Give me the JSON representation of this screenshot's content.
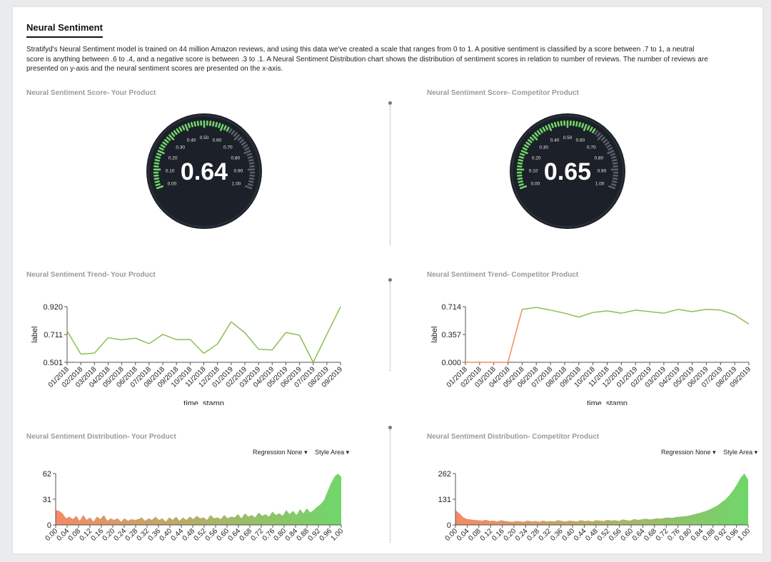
{
  "header": {
    "title": "Neural Sentiment",
    "description": "Stratifyd's Neural Sentiment model is trained on 44 million Amazon reviews, and using this data we've created a scale that ranges from 0 to 1. A positive sentiment is classified by a score between .7 to 1, a neutral score is anything between .6 to .4, and a negative score is between .3 to .1. A Neural Sentiment Distribution chart shows the distribution of sentiment scores in relation to number of reviews. The number of reviews are presented on y-axis and the neural sentiment scores are presented on the x-axis."
  },
  "sections": {
    "score_yours": "Neural Sentiment Score- Your Product",
    "score_comp": "Neural Sentiment Score-  Competitor Product",
    "trend_yours": "Neural Sentiment Trend- Your Product",
    "trend_comp": "Neural Sentiment Trend-  Competitor Product",
    "dist_yours": "Neural Sentiment Distribution- Your Product",
    "dist_comp": "Neural Sentiment Distribution- Competitor Product"
  },
  "controls": {
    "regression": "Regression None",
    "style": "Style Area",
    "caret": "▾"
  },
  "colors": {
    "positive": "#6fd66a",
    "negative": "#f48a66",
    "gauge_bg": "#1c2028",
    "line": "#8bbf4f"
  },
  "gauges": [
    {
      "value": "0.64",
      "ticks": [
        "0.00",
        "0.10",
        "0.20",
        "0.30",
        "0.40",
        "0.50",
        "0.60",
        "0.70",
        "0.80",
        "0.90",
        "1.00"
      ],
      "fill_fraction": 0.64
    },
    {
      "value": "0.65",
      "ticks": [
        "0.00",
        "0.10",
        "0.20",
        "0.30",
        "0.40",
        "0.50",
        "0.60",
        "0.70",
        "0.80",
        "0.90",
        "1.00"
      ],
      "fill_fraction": 0.65
    }
  ],
  "chart_data": [
    {
      "type": "line",
      "xlabel": "time_stamp",
      "ylabel": "label",
      "categories": [
        "01/2018",
        "02/2018",
        "03/2018",
        "04/2018",
        "05/2018",
        "06/2018",
        "07/2018",
        "08/2018",
        "09/2018",
        "10/2018",
        "11/2018",
        "12/2018",
        "01/2019",
        "02/2019",
        "03/2019",
        "04/2019",
        "05/2019",
        "06/2019",
        "07/2019",
        "08/2019",
        "09/2019"
      ],
      "values": [
        0.738,
        0.563,
        0.57,
        0.686,
        0.67,
        0.683,
        0.641,
        0.711,
        0.672,
        0.673,
        0.568,
        0.639,
        0.806,
        0.724,
        0.6,
        0.594,
        0.726,
        0.705,
        0.501,
        0.711,
        0.92
      ],
      "yticks": [
        "0.920",
        "0.711",
        "0.501"
      ],
      "ylim": [
        0.501,
        0.92
      ]
    },
    {
      "type": "line",
      "xlabel": "time_stamp",
      "ylabel": "label",
      "categories": [
        "01/2018",
        "02/2018",
        "03/2018",
        "04/2018",
        "05/2018",
        "06/2018",
        "07/2018",
        "08/2018",
        "09/2018",
        "10/2018",
        "11/2018",
        "12/2018",
        "01/2019",
        "02/2019",
        "03/2019",
        "04/2019",
        "05/2019",
        "06/2019",
        "07/2019",
        "08/2019",
        "09/2019"
      ],
      "values": [
        0.0,
        0.0,
        0.0,
        0.0,
        0.68,
        0.705,
        0.67,
        0.63,
        0.58,
        0.64,
        0.66,
        0.63,
        0.67,
        0.65,
        0.63,
        0.68,
        0.65,
        0.68,
        0.67,
        0.61,
        0.49
      ],
      "yticks": [
        "0.714",
        "0.357",
        "0.000"
      ],
      "ylim": [
        0,
        0.714
      ]
    },
    {
      "type": "area",
      "xticks": [
        "0.00",
        "0.04",
        "0.08",
        "0.12",
        "0.16",
        "0.20",
        "0.24",
        "0.28",
        "0.32",
        "0.36",
        "0.40",
        "0.44",
        "0.48",
        "0.52",
        "0.56",
        "0.60",
        "0.64",
        "0.68",
        "0.72",
        "0.76",
        "0.80",
        "0.84",
        "0.88",
        "0.92",
        "0.96",
        "1.00"
      ],
      "yticks": [
        "62",
        "31",
        "0"
      ],
      "ylim": [
        0,
        62
      ],
      "values": [
        18,
        17,
        14,
        8,
        10,
        7,
        11,
        5,
        12,
        6,
        9,
        4,
        10,
        7,
        12,
        5,
        8,
        6,
        8,
        4,
        8,
        5,
        7,
        6,
        7,
        9,
        5,
        8,
        6,
        10,
        6,
        8,
        4,
        9,
        6,
        10,
        5,
        9,
        6,
        10,
        7,
        11,
        8,
        9,
        6,
        12,
        8,
        9,
        7,
        12,
        8,
        10,
        9,
        13,
        8,
        14,
        10,
        12,
        9,
        15,
        11,
        13,
        10,
        16,
        12,
        14,
        11,
        18,
        13,
        17,
        12,
        19,
        14,
        20,
        15,
        18,
        22,
        25,
        30,
        40,
        50,
        58,
        62,
        58
      ]
    },
    {
      "type": "area",
      "xticks": [
        "0.00",
        "0.04",
        "0.08",
        "0.12",
        "0.16",
        "0.20",
        "0.24",
        "0.28",
        "0.32",
        "0.36",
        "0.40",
        "0.44",
        "0.48",
        "0.52",
        "0.56",
        "0.60",
        "0.64",
        "0.68",
        "0.72",
        "0.76",
        "0.80",
        "0.84",
        "0.88",
        "0.92",
        "0.96",
        "1.00"
      ],
      "yticks": [
        "262",
        "131",
        "0"
      ],
      "ylim": [
        0,
        262
      ],
      "values": [
        75,
        60,
        40,
        30,
        28,
        25,
        24,
        22,
        26,
        20,
        22,
        18,
        24,
        20,
        18,
        16,
        20,
        18,
        16,
        22,
        18,
        20,
        16,
        22,
        18,
        20,
        18,
        24,
        20,
        18,
        22,
        20,
        18,
        24,
        20,
        22,
        18,
        24,
        22,
        20,
        26,
        22,
        24,
        20,
        28,
        24,
        22,
        30,
        26,
        28,
        32,
        28,
        30,
        34,
        32,
        36,
        38,
        36,
        40,
        42,
        44,
        46,
        50,
        55,
        60,
        66,
        72,
        80,
        90,
        100,
        115,
        130,
        150,
        175,
        205,
        240,
        262,
        230
      ]
    }
  ]
}
